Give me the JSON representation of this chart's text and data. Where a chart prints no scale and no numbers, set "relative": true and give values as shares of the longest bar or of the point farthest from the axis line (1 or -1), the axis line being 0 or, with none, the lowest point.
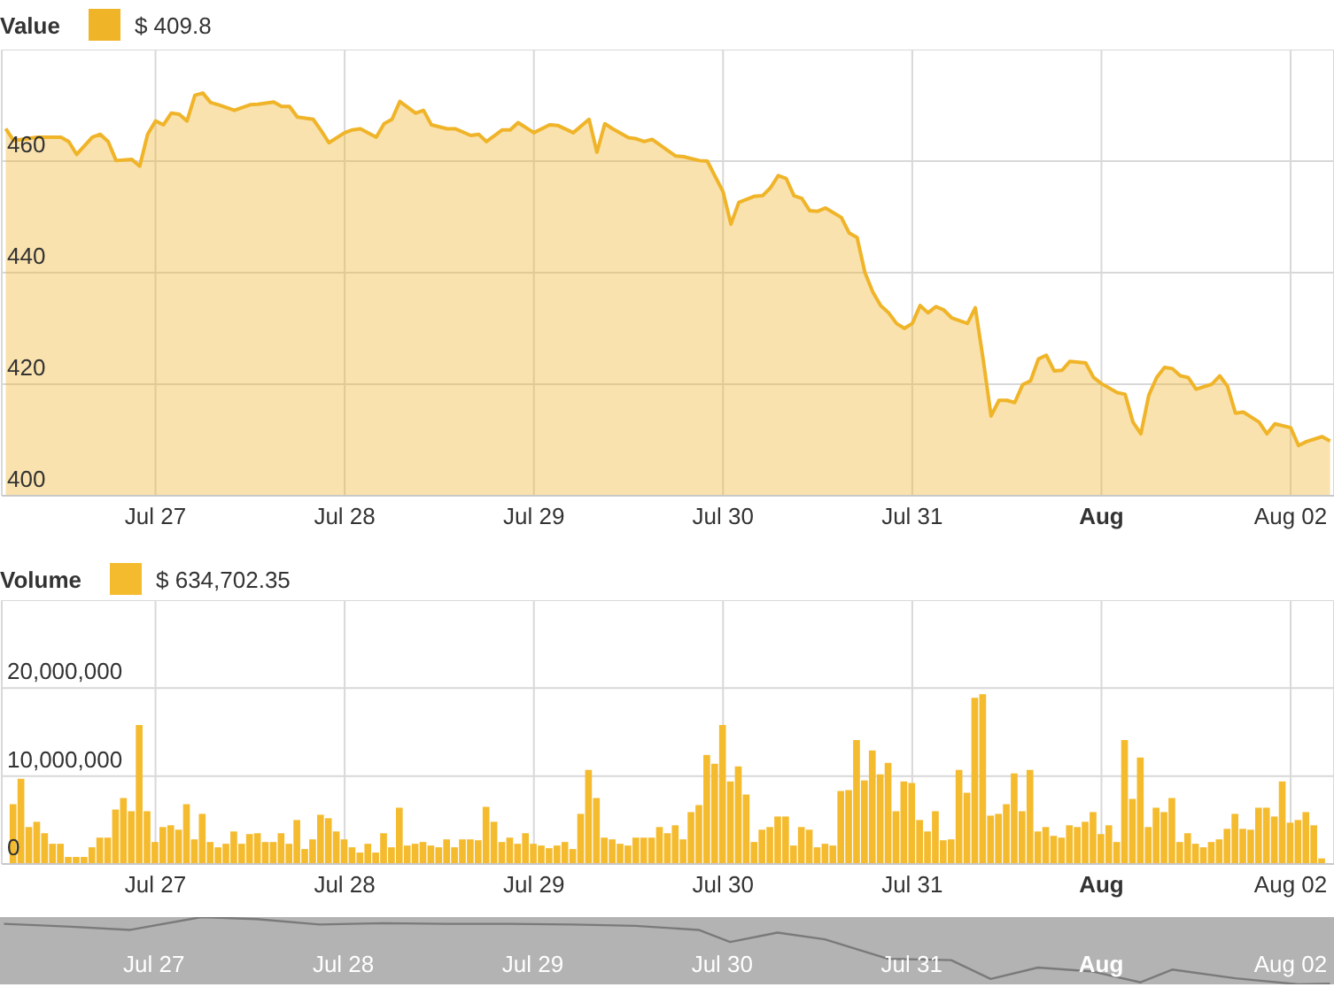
{
  "chart_data": [
    {
      "type": "area",
      "legend": "top left",
      "annotations": [
        "$ 409.8"
      ],
      "grid": true,
      "xlim": [
        "--07-26T04:30",
        "--08-02T05:30"
      ],
      "xticks": [
        {
          "value": "--07-27",
          "label": "Jul 27"
        },
        {
          "value": "--07-28",
          "label": "Jul 28"
        },
        {
          "value": "--07-29",
          "label": "Jul 29"
        },
        {
          "value": "--07-30",
          "label": "Jul 30"
        },
        {
          "value": "--07-31",
          "label": "Jul 31"
        },
        {
          "value": "--08-01",
          "label": "Aug"
        },
        {
          "value": "--08-02",
          "label": "Aug 02"
        }
      ],
      "ylim": [
        400,
        480
      ],
      "yticks": [
        400,
        420,
        440,
        460,
        {
          "value": 480,
          "label": null
        }
      ],
      "x": [
        "--07-26T05:00",
        "--07-26T06:00",
        "--07-26T09:00",
        "--07-26T12:00",
        "--07-26T13:00",
        "--07-26T14:00",
        "--07-26T16:00",
        "--07-26T17:00",
        "--07-26T18:00",
        "--07-26T19:00",
        "--07-26T21:00",
        "--07-26T22:00",
        "--07-26T23:00",
        "--07-27T00:00",
        "--07-27T01:00",
        "--07-27T02:00",
        "--07-27T03:00",
        "--07-27T04:00",
        "--07-27T05:00",
        "--07-27T06:00",
        "--07-27T07:00",
        "--07-27T08:00",
        "--07-27T10:00",
        "--07-27T12:00",
        "--07-27T13:00",
        "--07-27T15:00",
        "--07-27T16:00",
        "--07-27T17:00",
        "--07-27T18:00",
        "--07-27T20:00",
        "--07-27T21:00",
        "--07-27T22:00",
        "--07-28T00:00",
        "--07-28T01:00",
        "--07-28T02:00",
        "--07-28T04:00",
        "--07-28T05:00",
        "--07-28T06:00",
        "--07-28T07:00",
        "--07-28T09:00",
        "--07-28T10:00",
        "--07-28T11:00",
        "--07-28T13:00",
        "--07-28T14:00",
        "--07-28T16:00",
        "--07-28T17:00",
        "--07-28T18:00",
        "--07-28T20:00",
        "--07-28T21:00",
        "--07-28T22:00",
        "--07-29T00:00",
        "--07-29T02:00",
        "--07-29T03:00",
        "--07-29T05:00",
        "--07-29T07:00",
        "--07-29T08:00",
        "--07-29T09:00",
        "--07-29T10:00",
        "--07-29T12:00",
        "--07-29T13:00",
        "--07-29T14:00",
        "--07-29T15:00",
        "--07-29T17:00",
        "--07-29T18:00",
        "--07-29T19:00",
        "--07-29T21:00",
        "--07-29T22:00",
        "--07-30T00:00",
        "--07-30T01:00",
        "--07-30T02:00",
        "--07-30T04:00",
        "--07-30T05:00",
        "--07-30T06:00",
        "--07-30T07:00",
        "--07-30T08:00",
        "--07-30T09:00",
        "--07-30T10:00",
        "--07-30T11:00",
        "--07-30T12:00",
        "--07-30T13:00",
        "--07-30T15:00",
        "--07-30T16:00",
        "--07-30T17:00",
        "--07-30T18:00",
        "--07-30T19:00",
        "--07-30T20:00",
        "--07-30T21:00",
        "--07-30T22:00",
        "--07-30T23:00",
        "--07-31T00:00",
        "--07-31T01:00",
        "--07-31T02:00",
        "--07-31T03:00",
        "--07-31T04:00",
        "--07-31T05:00",
        "--07-31T07:00",
        "--07-31T08:00",
        "--07-31T09:00",
        "--07-31T10:00",
        "--07-31T11:00",
        "--07-31T12:00",
        "--07-31T13:00",
        "--07-31T14:00",
        "--07-31T15:00",
        "--07-31T16:00",
        "--07-31T17:00",
        "--07-31T18:00",
        "--07-31T19:00",
        "--07-31T20:00",
        "--07-31T22:00",
        "--07-31T23:00",
        "--08-01T00:00",
        "--08-01T02:00",
        "--08-01T03:00",
        "--08-01T04:00",
        "--08-01T05:00",
        "--08-01T06:00",
        "--08-01T07:00",
        "--08-01T08:00",
        "--08-01T09:00",
        "--08-01T10:00",
        "--08-01T11:00",
        "--08-01T12:00",
        "--08-01T14:00",
        "--08-01T15:00",
        "--08-01T16:00",
        "--08-01T17:00",
        "--08-01T18:00",
        "--08-01T20:00",
        "--08-01T21:00",
        "--08-01T22:00",
        "--08-02T00:00",
        "--08-02T01:00",
        "--08-02T02:00",
        "--08-02T04:00",
        "--08-02T05:00"
      ],
      "series": [
        {
          "name": "Value",
          "color": "#f0b429",
          "values": [
            465.8,
            463.7,
            464.3,
            464.3,
            463.5,
            461.2,
            464.3,
            464.8,
            463.5,
            460.1,
            460.3,
            459.1,
            464.8,
            467.2,
            466.5,
            468.6,
            468.4,
            467.2,
            471.8,
            472.2,
            470.5,
            470.1,
            469.1,
            470.1,
            470.2,
            470.6,
            469.8,
            469.8,
            467.9,
            467.5,
            465.5,
            463.3,
            465.1,
            465.6,
            465.8,
            464.3,
            466.7,
            467.5,
            470.7,
            468.6,
            469.1,
            466.5,
            465.8,
            465.8,
            464.6,
            464.8,
            463.5,
            465.6,
            465.6,
            466.9,
            465.1,
            466.5,
            466.4,
            465.1,
            467.5,
            461.6,
            466.7,
            465.8,
            464.2,
            464.0,
            463.5,
            463.9,
            461.9,
            460.9,
            460.8,
            460.1,
            460.0,
            454.5,
            448.7,
            452.6,
            453.7,
            453.8,
            455.2,
            457.4,
            456.9,
            453.8,
            453.3,
            451.1,
            451.0,
            451.6,
            449.9,
            447.1,
            446.3,
            440.0,
            436.5,
            434.1,
            432.8,
            430.9,
            430.0,
            430.9,
            434.1,
            432.8,
            433.9,
            433.3,
            431.9,
            430.9,
            433.7,
            424.4,
            414.3,
            417.1,
            417.1,
            416.7,
            419.9,
            420.6,
            424.5,
            425.2,
            422.4,
            422.5,
            424.1,
            423.8,
            421.2,
            420.1,
            418.5,
            418.2,
            413.2,
            411.1,
            418.0,
            421.2,
            423.0,
            422.8,
            421.5,
            421.2,
            419.1,
            420.0,
            421.5,
            419.6,
            414.8,
            415.0,
            413.2,
            411.1,
            412.9,
            412.2,
            409.0,
            409.7,
            410.6,
            409.8
          ]
        }
      ]
    },
    {
      "type": "bar",
      "legend": "top left",
      "annotations": [
        "$ 634,702.35"
      ],
      "grid": true,
      "xlim": [
        "--07-26T04:30",
        "--08-02T05:30"
      ],
      "xticks": [
        {
          "value": "--07-27",
          "label": "Jul 27"
        },
        {
          "value": "--07-28",
          "label": "Jul 28"
        },
        {
          "value": "--07-29",
          "label": "Jul 29"
        },
        {
          "value": "--07-30",
          "label": "Jul 30"
        },
        {
          "value": "--07-31",
          "label": "Jul 31"
        },
        {
          "value": "--08-01",
          "label": "Aug"
        },
        {
          "value": "--08-02",
          "label": "Aug 02"
        }
      ],
      "ylim": [
        0,
        30000000
      ],
      "yticks": [
        0,
        {
          "value": 10000000,
          "label": "10,000,000"
        },
        {
          "value": 20000000,
          "label": "20,000,000"
        },
        {
          "value": 30000000,
          "label": null
        }
      ],
      "x": [
        "--07-26T06:00",
        "--07-26T07:00",
        "--07-26T08:00",
        "--07-26T09:00",
        "--07-26T10:00",
        "--07-26T11:00",
        "--07-26T12:00",
        "--07-26T13:00",
        "--07-26T14:00",
        "--07-26T15:00",
        "--07-26T16:00",
        "--07-26T17:00",
        "--07-26T18:00",
        "--07-26T19:00",
        "--07-26T20:00",
        "--07-26T21:00",
        "--07-26T22:00",
        "--07-26T23:00",
        "--07-27T00:00",
        "--07-27T01:00",
        "--07-27T02:00",
        "--07-27T03:00",
        "--07-27T04:00",
        "--07-27T05:00",
        "--07-27T06:00",
        "--07-27T07:00",
        "--07-27T08:00",
        "--07-27T09:00",
        "--07-27T10:00",
        "--07-27T11:00",
        "--07-27T12:00",
        "--07-27T13:00",
        "--07-27T14:00",
        "--07-27T15:00",
        "--07-27T16:00",
        "--07-27T17:00",
        "--07-27T18:00",
        "--07-27T19:00",
        "--07-27T20:00",
        "--07-27T21:00",
        "--07-27T22:00",
        "--07-27T23:00",
        "--07-28T00:00",
        "--07-28T01:00",
        "--07-28T02:00",
        "--07-28T03:00",
        "--07-28T04:00",
        "--07-28T05:00",
        "--07-28T06:00",
        "--07-28T07:00",
        "--07-28T08:00",
        "--07-28T09:00",
        "--07-28T10:00",
        "--07-28T11:00",
        "--07-28T12:00",
        "--07-28T13:00",
        "--07-28T14:00",
        "--07-28T15:00",
        "--07-28T16:00",
        "--07-28T17:00",
        "--07-28T18:00",
        "--07-28T19:00",
        "--07-28T20:00",
        "--07-28T21:00",
        "--07-28T22:00",
        "--07-28T23:00",
        "--07-29T00:00",
        "--07-29T01:00",
        "--07-29T02:00",
        "--07-29T03:00",
        "--07-29T04:00",
        "--07-29T05:00",
        "--07-29T06:00",
        "--07-29T07:00",
        "--07-29T08:00",
        "--07-29T09:00",
        "--07-29T10:00",
        "--07-29T11:00",
        "--07-29T12:00",
        "--07-29T13:00",
        "--07-29T14:00",
        "--07-29T15:00",
        "--07-29T16:00",
        "--07-29T17:00",
        "--07-29T18:00",
        "--07-29T19:00",
        "--07-29T20:00",
        "--07-29T21:00",
        "--07-29T22:00",
        "--07-29T23:00",
        "--07-30T00:00",
        "--07-30T01:00",
        "--07-30T02:00",
        "--07-30T03:00",
        "--07-30T04:00",
        "--07-30T05:00",
        "--07-30T06:00",
        "--07-30T07:00",
        "--07-30T08:00",
        "--07-30T09:00",
        "--07-30T10:00",
        "--07-30T11:00",
        "--07-30T12:00",
        "--07-30T13:00",
        "--07-30T14:00",
        "--07-30T15:00",
        "--07-30T16:00",
        "--07-30T17:00",
        "--07-30T18:00",
        "--07-30T19:00",
        "--07-30T20:00",
        "--07-30T21:00",
        "--07-30T22:00",
        "--07-30T23:00",
        "--07-31T00:00",
        "--07-31T01:00",
        "--07-31T02:00",
        "--07-31T03:00",
        "--07-31T04:00",
        "--07-31T05:00",
        "--07-31T06:00",
        "--07-31T07:00",
        "--07-31T08:00",
        "--07-31T09:00",
        "--07-31T10:00",
        "--07-31T11:00",
        "--07-31T12:00",
        "--07-31T13:00",
        "--07-31T14:00",
        "--07-31T15:00",
        "--07-31T16:00",
        "--07-31T17:00",
        "--07-31T18:00",
        "--07-31T19:00",
        "--07-31T20:00",
        "--07-31T21:00",
        "--07-31T22:00",
        "--07-31T23:00",
        "--08-01T00:00",
        "--08-01T01:00",
        "--08-01T02:00",
        "--08-01T03:00",
        "--08-01T04:00",
        "--08-01T05:00",
        "--08-01T06:00",
        "--08-01T07:00",
        "--08-01T08:00",
        "--08-01T09:00",
        "--08-01T10:00",
        "--08-01T11:00",
        "--08-01T12:00",
        "--08-01T13:00",
        "--08-01T14:00",
        "--08-01T15:00",
        "--08-01T16:00",
        "--08-01T17:00",
        "--08-01T18:00",
        "--08-01T19:00",
        "--08-01T20:00",
        "--08-01T21:00",
        "--08-01T22:00",
        "--08-01T23:00",
        "--08-02T00:00",
        "--08-02T01:00",
        "--08-02T02:00",
        "--08-02T03:00",
        "--08-02T04:00"
      ],
      "series": [
        {
          "name": "Volume",
          "color": "#f5bb2e",
          "values": [
            6800000,
            9700000,
            4200000,
            4800000,
            3500000,
            2300000,
            2300000,
            800000,
            800000,
            800000,
            1900000,
            3000000,
            3000000,
            6200000,
            7500000,
            6000000,
            15800000,
            6000000,
            2500000,
            4200000,
            4400000,
            3900000,
            6800000,
            2800000,
            5700000,
            2500000,
            1900000,
            2300000,
            3700000,
            2300000,
            3400000,
            3500000,
            2500000,
            2500000,
            3500000,
            2300000,
            5000000,
            1700000,
            2800000,
            5600000,
            5200000,
            3700000,
            2800000,
            1900000,
            1300000,
            2300000,
            1300000,
            3500000,
            1900000,
            6400000,
            2100000,
            2300000,
            2500000,
            2100000,
            1900000,
            2800000,
            1900000,
            2800000,
            2800000,
            2700000,
            6500000,
            4800000,
            2500000,
            3000000,
            2300000,
            3500000,
            2300000,
            2100000,
            1800000,
            2100000,
            2500000,
            1700000,
            5700000,
            10700000,
            7500000,
            3000000,
            2800000,
            2300000,
            2100000,
            3000000,
            3000000,
            3000000,
            4200000,
            3500000,
            4400000,
            2800000,
            5900000,
            6700000,
            12400000,
            11400000,
            15800000,
            9400000,
            11100000,
            7900000,
            2500000,
            3900000,
            4200000,
            5400000,
            5400000,
            2100000,
            4200000,
            3900000,
            1900000,
            2300000,
            2100000,
            8300000,
            8400000,
            14100000,
            9500000,
            12900000,
            10200000,
            11500000,
            6000000,
            9400000,
            9200000,
            5000000,
            3700000,
            6000000,
            2700000,
            2800000,
            10700000,
            8100000,
            18900000,
            19300000,
            5500000,
            5700000,
            6800000,
            10300000,
            6000000,
            10700000,
            3700000,
            4200000,
            3200000,
            3000000,
            4400000,
            4200000,
            4800000,
            5900000,
            3400000,
            4400000,
            2500000,
            14100000,
            7400000,
            12100000,
            4200000,
            6400000,
            5900000,
            7500000,
            2500000,
            3500000,
            2300000,
            1900000,
            2500000,
            2800000,
            4000000,
            5700000,
            4000000,
            3900000,
            6400000,
            6400000,
            5400000,
            9400000,
            4700000,
            5000000,
            5900000,
            4400000,
            634702.35
          ]
        }
      ]
    },
    {
      "type": "line",
      "relative": true,
      "grid": "x",
      "xlim": [
        "--07-26T04:30",
        "--08-02T05:30"
      ],
      "xticks": [
        {
          "value": "--07-27",
          "label": "Jul 27"
        },
        {
          "value": "--07-28",
          "label": "Jul 28"
        },
        {
          "value": "--07-29",
          "label": "Jul 29"
        },
        {
          "value": "--07-30",
          "label": "Jul 30"
        },
        {
          "value": "--07-31",
          "label": "Jul 31"
        },
        {
          "value": "--08-01",
          "label": "Aug"
        },
        {
          "value": "--08-02",
          "label": "Aug 02"
        }
      ],
      "x": [
        "--07-26T05:00",
        "--07-26T13:00",
        "--07-26T21:00",
        "--07-27T06:00",
        "--07-27T13:00",
        "--07-27T21:00",
        "--07-28T05:00",
        "--07-28T13:00",
        "--07-28T21:00",
        "--07-29T05:00",
        "--07-29T13:00",
        "--07-29T21:00",
        "--07-30T01:00",
        "--07-30T07:00",
        "--07-30T13:00",
        "--07-30T21:00",
        "--07-31T05:00",
        "--07-31T10:00",
        "--07-31T16:00",
        "--07-31T23:00",
        "--08-01T05:00",
        "--08-01T09:00",
        "--08-01T17:00",
        "--08-02T01:00",
        "--08-02T05:00"
      ],
      "series": [
        {
          "color": "#7a7a7a",
          "values": [
            0.9,
            0.86,
            0.81,
            1,
            0.97,
            0.89,
            0.91,
            0.9,
            0.9,
            0.89,
            0.87,
            0.81,
            0.63,
            0.77,
            0.67,
            0.38,
            0.36,
            0.08,
            0.25,
            0.19,
            0.03,
            0.22,
            0.09,
            0,
            0.01
          ]
        }
      ]
    }
  ]
}
